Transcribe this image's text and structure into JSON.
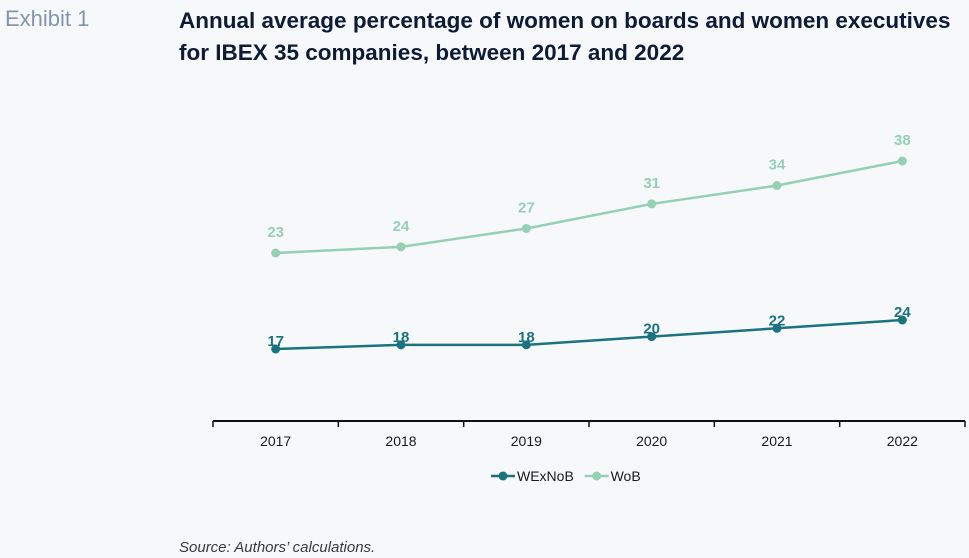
{
  "exhibit_label": "Exhibit 1",
  "title": "Annual average percentage of women on boards and women executives for IBEX 35 companies, between 2017 and 2022",
  "source": "Source: Authors’ calculations.",
  "chart_data": {
    "type": "line",
    "title": "Annual average percentage of women on boards and women executives for IBEX 35 companies, between 2017 and 2022",
    "xlabel": "",
    "ylabel": "",
    "categories": [
      "2017",
      "2018",
      "2019",
      "2020",
      "2021",
      "2022"
    ],
    "series": [
      {
        "name": "WExNoB",
        "color": "#1a737f",
        "values": [
          17,
          18,
          18,
          20,
          22,
          24
        ]
      },
      {
        "name": "WoB",
        "color": "#94d1b4",
        "values": [
          23,
          24,
          27,
          31,
          34,
          38
        ]
      }
    ],
    "grid": false,
    "y_axis_visible": false,
    "data_labels": true,
    "legend": "bottom-center"
  }
}
